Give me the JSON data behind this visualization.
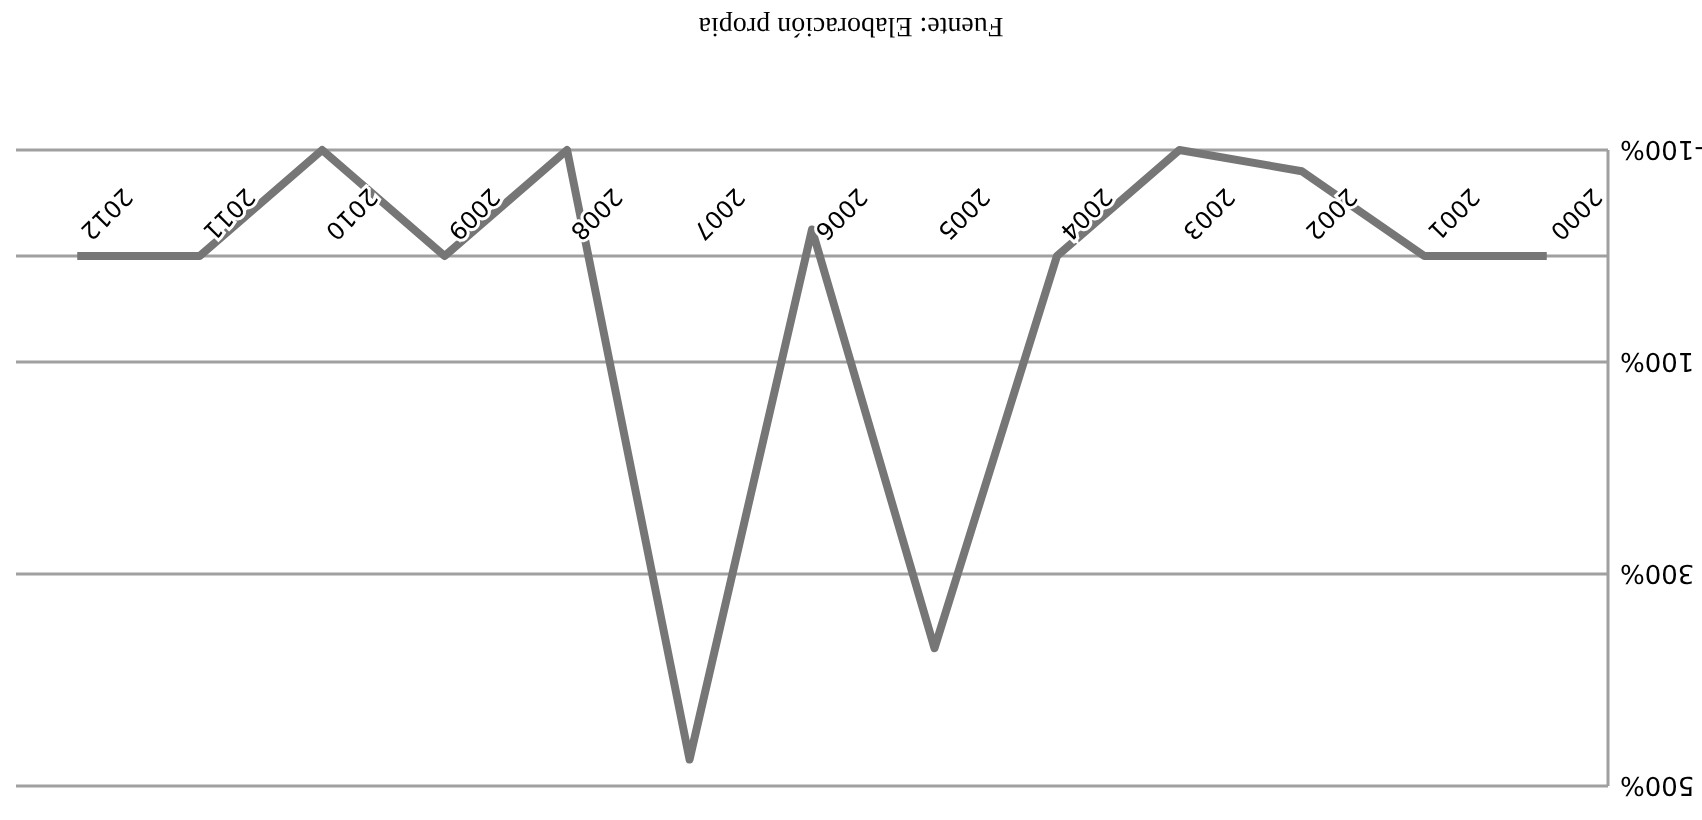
{
  "chart_data": {
    "type": "line",
    "categories": [
      "2012",
      "2011",
      "2010",
      "2009",
      "2008",
      "2007",
      "2006",
      "2005",
      "2004",
      "2003",
      "2002",
      "2001",
      "2000"
    ],
    "series": [
      {
        "color": "#767676",
        "values": [
          0,
          0,
          -100,
          0,
          -100,
          475,
          -25,
          370,
          0,
          -100,
          -80,
          0,
          0
        ]
      }
    ],
    "ylim": [
      500,
      -100
    ],
    "yticks": [
      {
        "value": -100,
        "label": "-100%"
      },
      {
        "value": 100,
        "label": "100%"
      },
      {
        "value": 300,
        "label": "300%"
      },
      {
        "value": 500,
        "label": "500%"
      }
    ],
    "grid": "y",
    "marker": "none",
    "line_style": "solid",
    "annotations": [
      "Fuente: Elaboración propia"
    ]
  }
}
